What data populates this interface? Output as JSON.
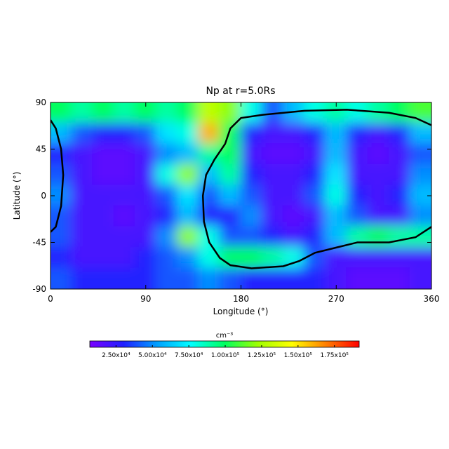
{
  "chart_data": {
    "type": "heatmap",
    "title": "Np at r=5.0Rs",
    "x_label": "Longitude (°)",
    "y_label": "Latitude (°)",
    "xlim": [
      0,
      360
    ],
    "xticks": [
      0,
      90,
      180,
      270,
      360
    ],
    "ylim": [
      -90,
      90
    ],
    "yticks": [
      -90,
      -45,
      0,
      45,
      90
    ],
    "x": [
      10,
      30,
      50,
      70,
      90,
      110,
      130,
      150,
      170,
      190,
      210,
      230,
      250,
      270,
      290,
      310,
      330,
      350
    ],
    "y": [
      80,
      60,
      40,
      20,
      0,
      -20,
      -40,
      -60,
      -80
    ],
    "z": [
      [
        100000,
        90000,
        100000,
        90000,
        100000,
        90000,
        100000,
        130000,
        120000,
        80000,
        40000,
        60000,
        80000,
        90000,
        80000,
        90000,
        100000,
        110000
      ],
      [
        60000,
        40000,
        30000,
        30000,
        40000,
        70000,
        80000,
        160000,
        100000,
        30000,
        20000,
        20000,
        30000,
        60000,
        30000,
        20000,
        30000,
        60000
      ],
      [
        30000,
        20000,
        15000,
        15000,
        20000,
        50000,
        60000,
        90000,
        100000,
        20000,
        15000,
        15000,
        20000,
        60000,
        20000,
        15000,
        20000,
        40000
      ],
      [
        40000,
        20000,
        15000,
        15000,
        20000,
        80000,
        120000,
        60000,
        90000,
        30000,
        20000,
        20000,
        30000,
        70000,
        20000,
        20000,
        20000,
        50000
      ],
      [
        50000,
        20000,
        20000,
        20000,
        20000,
        40000,
        70000,
        40000,
        60000,
        40000,
        20000,
        20000,
        40000,
        80000,
        30000,
        20000,
        30000,
        60000
      ],
      [
        40000,
        20000,
        20000,
        15000,
        20000,
        30000,
        60000,
        30000,
        30000,
        50000,
        20000,
        15000,
        20000,
        60000,
        40000,
        20000,
        20000,
        50000
      ],
      [
        40000,
        20000,
        20000,
        20000,
        20000,
        50000,
        120000,
        80000,
        40000,
        40000,
        30000,
        20000,
        30000,
        60000,
        90000,
        100000,
        90000,
        90000
      ],
      [
        30000,
        20000,
        20000,
        20000,
        30000,
        40000,
        50000,
        80000,
        100000,
        100000,
        90000,
        80000,
        40000,
        20000,
        20000,
        20000,
        20000,
        20000
      ],
      [
        40000,
        30000,
        30000,
        30000,
        30000,
        40000,
        40000,
        50000,
        40000,
        30000,
        30000,
        30000,
        30000,
        20000,
        15000,
        15000,
        15000,
        20000
      ]
    ],
    "colormap": [
      "#7a00ff",
      "#2020ff",
      "#00a0ff",
      "#00ffff",
      "#00ff60",
      "#a0ff00",
      "#ffff00",
      "#ff8000",
      "#ff0000"
    ],
    "zlim": [
      7000,
      192000
    ],
    "colorbar_label": "cm⁻³",
    "zticks": [
      {
        "value": 25000,
        "label": "2.50x10⁴"
      },
      {
        "value": 50000,
        "label": "5.00x10⁴"
      },
      {
        "value": 75000,
        "label": "7.50x10⁴"
      },
      {
        "value": 100000,
        "label": "1.00x10⁵"
      },
      {
        "value": 125000,
        "label": "1.25x10⁵"
      },
      {
        "value": 150000,
        "label": "1.50x10⁵"
      },
      {
        "value": 175000,
        "label": "1.75x10⁵"
      }
    ],
    "contours": [
      {
        "lon": [
          0,
          5,
          10,
          12,
          10,
          5,
          0
        ],
        "lat": [
          73,
          65,
          45,
          20,
          -10,
          -30,
          -35
        ]
      },
      {
        "lon": [
          360,
          345,
          320,
          290,
          270,
          250,
          235,
          220,
          190,
          170,
          160,
          150,
          145,
          144,
          147,
          155,
          165,
          170,
          180,
          200,
          240,
          280,
          320,
          345,
          360
        ],
        "lat": [
          -30,
          -40,
          -45,
          -45,
          -50,
          -55,
          -63,
          -68,
          -70,
          -67,
          -60,
          -45,
          -25,
          0,
          20,
          35,
          50,
          65,
          75,
          78,
          82,
          83,
          80,
          75,
          68
        ]
      }
    ],
    "contour_color": "#000000"
  }
}
